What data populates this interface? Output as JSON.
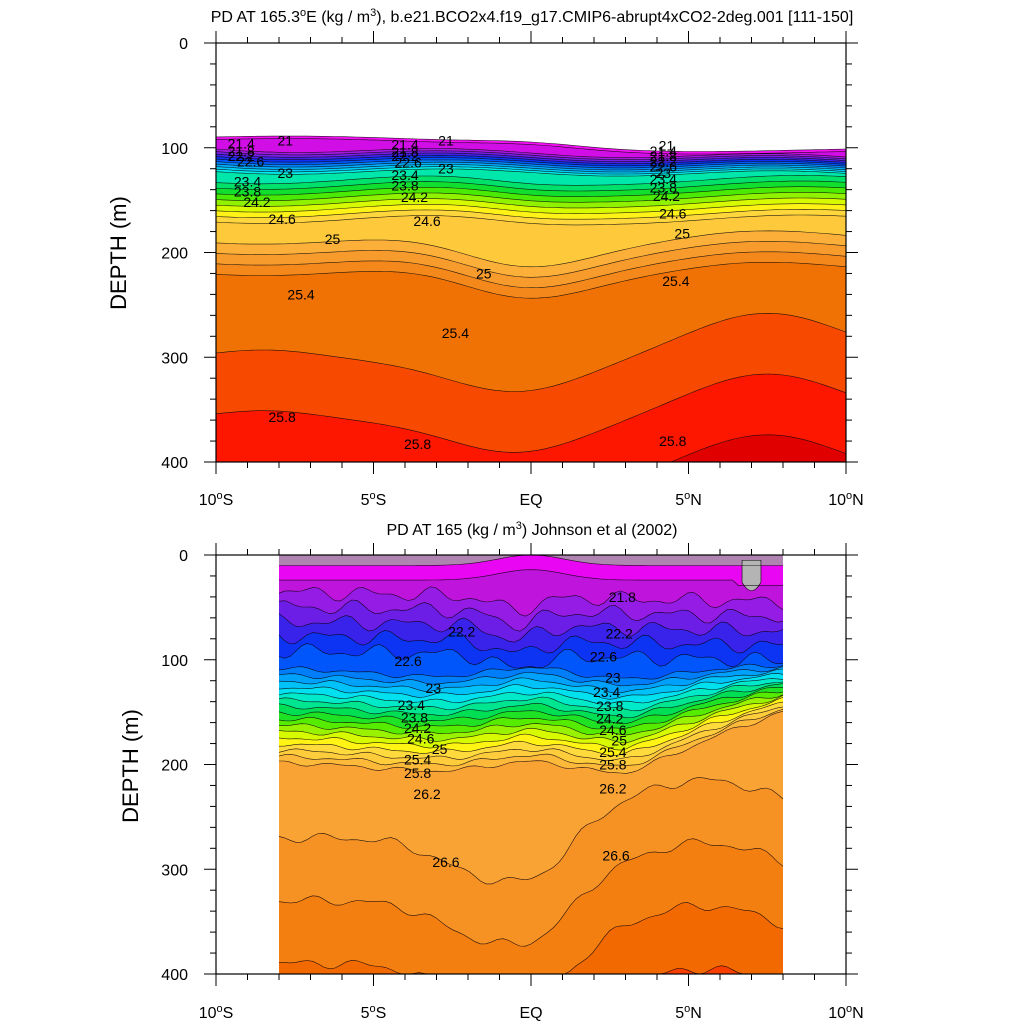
{
  "chart_data": [
    {
      "type": "contour",
      "title_prefix": "PD AT 165.3",
      "title_degree": "o",
      "title_mid": "E (kg / m",
      "title_sup": "3",
      "title_suffix": "), b.e21.BCO2x4.f19_g17.CMIP6-abrupt4xCO2-2deg.001 [111-150]",
      "ylabel": "DEPTH (m)",
      "ylim": [
        400,
        0
      ],
      "xlim": [
        -10,
        10
      ],
      "y_ticks": [
        "0",
        "100",
        "200",
        "300",
        "400"
      ],
      "x_ticks": [
        {
          "num": "10",
          "hemi": "S"
        },
        {
          "num": "5",
          "hemi": "S"
        },
        {
          "num": "EQ",
          "hemi": ""
        },
        {
          "num": "5",
          "hemi": "N"
        },
        {
          "num": "10",
          "hemi": "N"
        }
      ],
      "levels_start": 20.8,
      "levels_end": 26.0,
      "levels_step": 0.2,
      "contour_labels": [
        {
          "text": "21",
          "x": -7.8,
          "y": 93
        },
        {
          "text": "21.4",
          "x": -9.2,
          "y": 96
        },
        {
          "text": "21.8",
          "x": -9.2,
          "y": 103
        },
        {
          "text": "22.2",
          "x": -9.2,
          "y": 108
        },
        {
          "text": "22.6",
          "x": -8.9,
          "y": 113
        },
        {
          "text": "23",
          "x": -7.8,
          "y": 124
        },
        {
          "text": "23.4",
          "x": -9.0,
          "y": 132
        },
        {
          "text": "23.8",
          "x": -9.0,
          "y": 142
        },
        {
          "text": "24.2",
          "x": -8.7,
          "y": 152
        },
        {
          "text": "24.6",
          "x": -7.9,
          "y": 168
        },
        {
          "text": "25",
          "x": -6.3,
          "y": 187
        },
        {
          "text": "25.4",
          "x": -7.3,
          "y": 240
        },
        {
          "text": "25.8",
          "x": -7.9,
          "y": 357
        },
        {
          "text": "21",
          "x": -2.7,
          "y": 93
        },
        {
          "text": "21.4",
          "x": -4.0,
          "y": 97
        },
        {
          "text": "21.8",
          "x": -4.0,
          "y": 104
        },
        {
          "text": "22.2",
          "x": -4.0,
          "y": 108
        },
        {
          "text": "22.6",
          "x": -3.9,
          "y": 114
        },
        {
          "text": "23",
          "x": -2.7,
          "y": 120
        },
        {
          "text": "23.4",
          "x": -4.0,
          "y": 126
        },
        {
          "text": "23.8",
          "x": -4.0,
          "y": 136
        },
        {
          "text": "24.2",
          "x": -3.7,
          "y": 147
        },
        {
          "text": "24.6",
          "x": -3.3,
          "y": 170
        },
        {
          "text": "25",
          "x": -1.5,
          "y": 220
        },
        {
          "text": "25.4",
          "x": -2.4,
          "y": 277
        },
        {
          "text": "25.8",
          "x": -3.6,
          "y": 383
        },
        {
          "text": "21",
          "x": 4.3,
          "y": 98
        },
        {
          "text": "21.4",
          "x": 4.2,
          "y": 103
        },
        {
          "text": "21.8",
          "x": 4.2,
          "y": 108
        },
        {
          "text": "22.2",
          "x": 4.2,
          "y": 113
        },
        {
          "text": "22.6",
          "x": 4.2,
          "y": 118
        },
        {
          "text": "23",
          "x": 4.2,
          "y": 124
        },
        {
          "text": "23.4",
          "x": 4.2,
          "y": 130
        },
        {
          "text": "23.8",
          "x": 4.2,
          "y": 138
        },
        {
          "text": "24.2",
          "x": 4.3,
          "y": 146
        },
        {
          "text": "24.6",
          "x": 4.5,
          "y": 163
        },
        {
          "text": "25",
          "x": 4.8,
          "y": 182
        },
        {
          "text": "25.4",
          "x": 4.6,
          "y": 227
        },
        {
          "text": "25.8",
          "x": 4.5,
          "y": 380
        }
      ]
    },
    {
      "type": "contour",
      "title_prefix": "PD AT 165 (kg / m",
      "title_sup": "3",
      "title_suffix": ") Johnson et al (2002)",
      "ylabel": "DEPTH (m)",
      "ylim": [
        400,
        0
      ],
      "xlim": [
        -10,
        10
      ],
      "data_xrange": [
        -8,
        8
      ],
      "y_ticks": [
        "0",
        "100",
        "200",
        "300",
        "400"
      ],
      "x_ticks": [
        {
          "num": "10",
          "hemi": "S"
        },
        {
          "num": "5",
          "hemi": "S"
        },
        {
          "num": "EQ",
          "hemi": ""
        },
        {
          "num": "5",
          "hemi": "N"
        },
        {
          "num": "10",
          "hemi": "N"
        }
      ],
      "levels_start": 21.4,
      "levels_end": 27.0,
      "levels_step": 0.2,
      "contour_labels": [
        {
          "text": "21.8",
          "x": 2.9,
          "y": 40
        },
        {
          "text": "22.2",
          "x": -2.2,
          "y": 73
        },
        {
          "text": "22.6",
          "x": -3.9,
          "y": 101
        },
        {
          "text": "23",
          "x": -3.1,
          "y": 127
        },
        {
          "text": "23.4",
          "x": -3.8,
          "y": 143
        },
        {
          "text": "23.8",
          "x": -3.7,
          "y": 155
        },
        {
          "text": "24.2",
          "x": -3.6,
          "y": 165
        },
        {
          "text": "24.6",
          "x": -3.5,
          "y": 175
        },
        {
          "text": "25",
          "x": -2.9,
          "y": 185
        },
        {
          "text": "25.4",
          "x": -3.6,
          "y": 195
        },
        {
          "text": "25.8",
          "x": -3.6,
          "y": 208
        },
        {
          "text": "26.2",
          "x": -3.3,
          "y": 228
        },
        {
          "text": "26.6",
          "x": -2.7,
          "y": 293
        },
        {
          "text": "22.2",
          "x": 2.8,
          "y": 75
        },
        {
          "text": "22.6",
          "x": 2.3,
          "y": 97
        },
        {
          "text": "23",
          "x": 2.6,
          "y": 117
        },
        {
          "text": "23.4",
          "x": 2.4,
          "y": 131
        },
        {
          "text": "23.8",
          "x": 2.5,
          "y": 144
        },
        {
          "text": "24.2",
          "x": 2.5,
          "y": 156
        },
        {
          "text": "24.6",
          "x": 2.6,
          "y": 167
        },
        {
          "text": "25",
          "x": 2.8,
          "y": 177
        },
        {
          "text": "25.4",
          "x": 2.6,
          "y": 188
        },
        {
          "text": "25.8",
          "x": 2.6,
          "y": 200
        },
        {
          "text": "26.2",
          "x": 2.6,
          "y": 223
        },
        {
          "text": "26.6",
          "x": 2.7,
          "y": 287
        }
      ]
    }
  ]
}
